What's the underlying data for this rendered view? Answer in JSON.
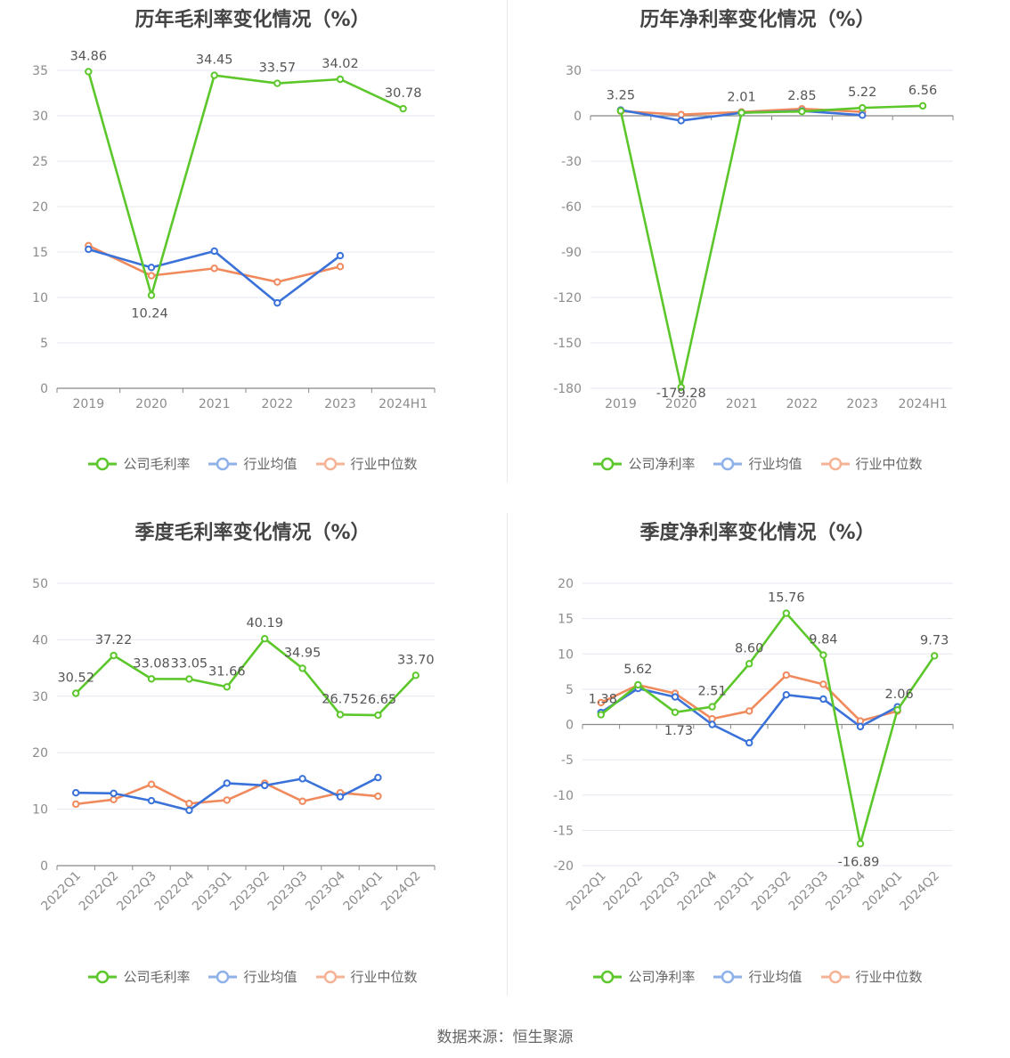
{
  "source": "数据来源：恒生聚源",
  "colors": {
    "company": "#5cc72b",
    "avg": "#3a72d9",
    "median": "#f08a5d",
    "grid": "#e5e7f0",
    "axis": "#888888"
  },
  "legend_labels": {
    "gross": [
      "公司毛利率",
      "行业均值",
      "行业中位数"
    ],
    "net": [
      "公司净利率",
      "行业均值",
      "行业中位数"
    ]
  },
  "chart_data": [
    {
      "type": "line",
      "title": "历年毛利率变化情况（%）",
      "categories": [
        "2019",
        "2020",
        "2021",
        "2022",
        "2023",
        "2024H1"
      ],
      "ylim": [
        0,
        35
      ],
      "yticks": [
        0,
        5,
        10,
        15,
        20,
        25,
        30,
        35
      ],
      "grid": true,
      "legend_position": "bottom",
      "series": [
        {
          "name": "公司毛利率",
          "values": [
            34.86,
            10.24,
            34.45,
            33.57,
            34.02,
            30.78
          ],
          "labels": [
            "34.86",
            "10.24",
            "34.45",
            "33.57",
            "34.02",
            "30.78"
          ]
        },
        {
          "name": "行业均值",
          "values": [
            15.3,
            13.3,
            15.1,
            9.4,
            14.6,
            null
          ]
        },
        {
          "name": "行业中位数",
          "values": [
            15.7,
            12.4,
            13.2,
            11.7,
            13.4,
            null
          ]
        }
      ]
    },
    {
      "type": "line",
      "title": "历年净利率变化情况（%）",
      "categories": [
        "2019",
        "2020",
        "2021",
        "2022",
        "2023",
        "2024H1"
      ],
      "ylim": [
        -180,
        30
      ],
      "yticks": [
        -180,
        -150,
        -120,
        -90,
        -60,
        -30,
        0,
        30
      ],
      "grid": true,
      "legend_position": "bottom",
      "series": [
        {
          "name": "公司净利率",
          "values": [
            3.25,
            -179.28,
            2.01,
            2.85,
            5.22,
            6.56
          ],
          "labels": [
            "3.25",
            "-179.28",
            "2.01",
            "2.85",
            "5.22",
            "6.56"
          ]
        },
        {
          "name": "行业均值",
          "values": [
            3.8,
            -3.2,
            2.0,
            3.2,
            0.4,
            null
          ]
        },
        {
          "name": "行业中位数",
          "values": [
            3.0,
            0.8,
            2.5,
            4.6,
            2.6,
            null
          ]
        }
      ]
    },
    {
      "type": "line",
      "title": "季度毛利率变化情况（%）",
      "categories": [
        "2022Q1",
        "2022Q2",
        "2022Q3",
        "2022Q4",
        "2023Q1",
        "2023Q2",
        "2023Q3",
        "2023Q4",
        "2024Q1",
        "2024Q2"
      ],
      "ylim": [
        0,
        50
      ],
      "yticks": [
        0,
        10,
        20,
        30,
        40,
        50
      ],
      "grid": true,
      "legend_position": "bottom",
      "series": [
        {
          "name": "公司毛利率",
          "values": [
            30.52,
            37.22,
            33.08,
            33.05,
            31.66,
            40.19,
            34.95,
            26.75,
            26.65,
            33.7
          ],
          "labels": [
            "30.52",
            "37.22",
            "33.08",
            "33.05",
            "31.66",
            "40.19",
            "34.95",
            "26.75",
            "26.65",
            "33.70"
          ]
        },
        {
          "name": "行业均值",
          "values": [
            12.9,
            12.8,
            11.5,
            9.8,
            14.6,
            14.2,
            15.4,
            12.2,
            15.6,
            null
          ]
        },
        {
          "name": "行业中位数",
          "values": [
            10.9,
            11.7,
            14.4,
            11.0,
            11.6,
            14.6,
            11.4,
            12.9,
            12.3,
            null
          ]
        }
      ]
    },
    {
      "type": "line",
      "title": "季度净利率变化情况（%）",
      "categories": [
        "2022Q1",
        "2022Q2",
        "2022Q3",
        "2022Q4",
        "2023Q1",
        "2023Q2",
        "2023Q3",
        "2023Q4",
        "2024Q1",
        "2024Q2"
      ],
      "ylim": [
        -20,
        20
      ],
      "yticks": [
        -20,
        -15,
        -10,
        -5,
        0,
        5,
        10,
        15,
        20
      ],
      "grid": true,
      "legend_position": "bottom",
      "series": [
        {
          "name": "公司净利率",
          "values": [
            1.38,
            5.62,
            1.73,
            2.51,
            8.6,
            15.76,
            9.84,
            -16.89,
            2.06,
            9.73
          ],
          "labels": [
            "1.38",
            "5.62",
            "1.73",
            "2.51",
            "8.60",
            "15.76",
            "9.84",
            "-16.89",
            "2.06",
            "9.73"
          ]
        },
        {
          "name": "行业均值",
          "values": [
            1.7,
            5.1,
            3.9,
            0.0,
            -2.6,
            4.2,
            3.6,
            -0.3,
            2.5,
            null
          ]
        },
        {
          "name": "行业中位数",
          "values": [
            3.1,
            5.6,
            4.4,
            0.8,
            1.9,
            7.0,
            5.7,
            0.5,
            1.9,
            null
          ]
        }
      ]
    }
  ]
}
